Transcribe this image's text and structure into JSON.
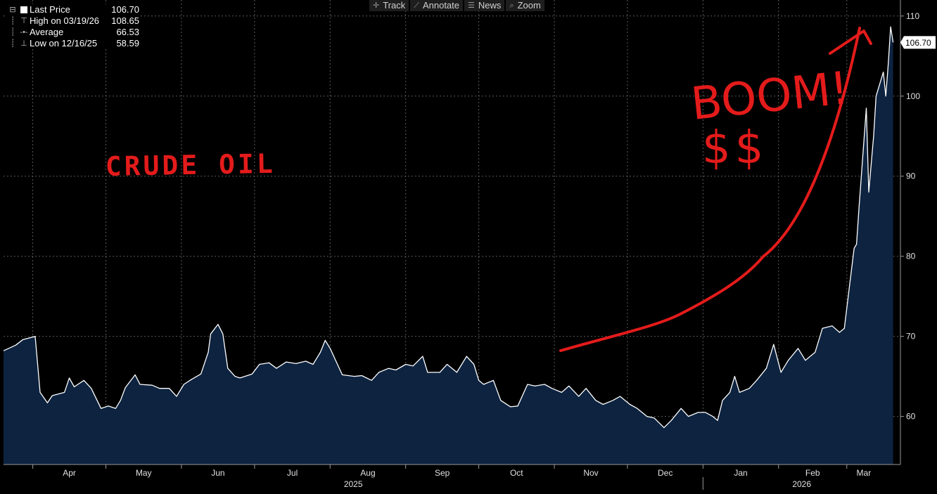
{
  "toolbar": {
    "buttons": [
      {
        "label": "Track",
        "icon": "crosshair-icon",
        "glyph": "✛"
      },
      {
        "label": "Annotate",
        "icon": "pencil-icon",
        "glyph": "⟋"
      },
      {
        "label": "News",
        "icon": "news-icon",
        "glyph": "☰"
      },
      {
        "label": "Zoom",
        "icon": "magnifier-icon",
        "glyph": "⌕"
      }
    ]
  },
  "legend": {
    "last_price": {
      "label": "Last Price",
      "value": "106.70"
    },
    "high": {
      "label": "High on 03/19/26",
      "value": "108.65"
    },
    "average": {
      "label": "Average",
      "value": "66.53"
    },
    "low": {
      "label": "Low on 12/16/25",
      "value": "58.59"
    }
  },
  "annotations": {
    "left_text": "CRUDE OIL",
    "boom_text": "BOOM!",
    "money_text": "$$",
    "color": "#e41b1b"
  },
  "colors": {
    "background": "#000000",
    "area_fill": "#0d2340",
    "line": "#ffffff",
    "grid": "#5a5a5a"
  },
  "chart_data": {
    "type": "area",
    "y_axis_side": "right",
    "ylim": [
      54,
      112
    ],
    "y_ticks": [
      60,
      70,
      80,
      90,
      100,
      110
    ],
    "grid": true,
    "last_price_tag": "106.70",
    "x_month_labels": [
      "Apr",
      "May",
      "Jun",
      "Jul",
      "Aug",
      "Sep",
      "Oct",
      "Nov",
      "Dec",
      "Jan",
      "Feb",
      "Mar"
    ],
    "x_year_labels": [
      "2025",
      "2026"
    ],
    "x_start": "2025-03-20",
    "x_end": "2026-03-23",
    "series": [
      {
        "values": [
          [
            "2025-03-20",
            68.2
          ],
          [
            "2025-03-25",
            68.9
          ],
          [
            "2025-03-28",
            69.6
          ],
          [
            "2025-04-02",
            70.0
          ],
          [
            "2025-04-04",
            63.0
          ],
          [
            "2025-04-07",
            61.7
          ],
          [
            "2025-04-09",
            62.6
          ],
          [
            "2025-04-14",
            63.0
          ],
          [
            "2025-04-16",
            64.8
          ],
          [
            "2025-04-18",
            63.7
          ],
          [
            "2025-04-22",
            64.5
          ],
          [
            "2025-04-25",
            63.5
          ],
          [
            "2025-04-29",
            61.0
          ],
          [
            "2025-05-02",
            61.3
          ],
          [
            "2025-05-05",
            61.0
          ],
          [
            "2025-05-07",
            62.0
          ],
          [
            "2025-05-09",
            63.6
          ],
          [
            "2025-05-13",
            65.2
          ],
          [
            "2025-05-15",
            64.0
          ],
          [
            "2025-05-20",
            63.9
          ],
          [
            "2025-05-23",
            63.5
          ],
          [
            "2025-05-27",
            63.5
          ],
          [
            "2025-05-30",
            62.5
          ],
          [
            "2025-06-02",
            64.0
          ],
          [
            "2025-06-05",
            64.6
          ],
          [
            "2025-06-09",
            65.3
          ],
          [
            "2025-06-12",
            68.0
          ],
          [
            "2025-06-13",
            70.3
          ],
          [
            "2025-06-16",
            71.5
          ],
          [
            "2025-06-18",
            70.3
          ],
          [
            "2025-06-20",
            66.0
          ],
          [
            "2025-06-23",
            65.0
          ],
          [
            "2025-06-25",
            64.8
          ],
          [
            "2025-06-30",
            65.3
          ],
          [
            "2025-07-03",
            66.5
          ],
          [
            "2025-07-07",
            66.7
          ],
          [
            "2025-07-10",
            66.0
          ],
          [
            "2025-07-14",
            66.8
          ],
          [
            "2025-07-18",
            66.6
          ],
          [
            "2025-07-22",
            66.9
          ],
          [
            "2025-07-25",
            66.5
          ],
          [
            "2025-07-28",
            68.0
          ],
          [
            "2025-07-30",
            69.5
          ],
          [
            "2025-08-01",
            68.5
          ],
          [
            "2025-08-04",
            66.5
          ],
          [
            "2025-08-06",
            65.2
          ],
          [
            "2025-08-11",
            65.0
          ],
          [
            "2025-08-14",
            65.1
          ],
          [
            "2025-08-18",
            64.5
          ],
          [
            "2025-08-21",
            65.5
          ],
          [
            "2025-08-25",
            66.0
          ],
          [
            "2025-08-28",
            65.8
          ],
          [
            "2025-09-01",
            66.5
          ],
          [
            "2025-09-04",
            66.3
          ],
          [
            "2025-09-08",
            67.5
          ],
          [
            "2025-09-10",
            65.5
          ],
          [
            "2025-09-15",
            65.5
          ],
          [
            "2025-09-18",
            66.5
          ],
          [
            "2025-09-22",
            65.5
          ],
          [
            "2025-09-26",
            67.5
          ],
          [
            "2025-09-29",
            66.5
          ],
          [
            "2025-10-01",
            64.5
          ],
          [
            "2025-10-03",
            64.0
          ],
          [
            "2025-10-07",
            64.5
          ],
          [
            "2025-10-10",
            62.0
          ],
          [
            "2025-10-14",
            61.2
          ],
          [
            "2025-10-17",
            61.3
          ],
          [
            "2025-10-21",
            64.0
          ],
          [
            "2025-10-24",
            63.8
          ],
          [
            "2025-10-28",
            64.0
          ],
          [
            "2025-10-31",
            63.5
          ],
          [
            "2025-11-04",
            63.0
          ],
          [
            "2025-11-07",
            63.8
          ],
          [
            "2025-11-11",
            62.5
          ],
          [
            "2025-11-14",
            63.5
          ],
          [
            "2025-11-18",
            62.0
          ],
          [
            "2025-11-21",
            61.5
          ],
          [
            "2025-11-25",
            62.0
          ],
          [
            "2025-11-28",
            62.5
          ],
          [
            "2025-12-02",
            61.5
          ],
          [
            "2025-12-05",
            61.0
          ],
          [
            "2025-12-09",
            60.0
          ],
          [
            "2025-12-12",
            59.8
          ],
          [
            "2025-12-16",
            58.6
          ],
          [
            "2025-12-19",
            59.5
          ],
          [
            "2025-12-23",
            61.0
          ],
          [
            "2025-12-26",
            60.0
          ],
          [
            "2025-12-30",
            60.5
          ],
          [
            "2026-01-02",
            60.5
          ],
          [
            "2026-01-05",
            60.0
          ],
          [
            "2026-01-07",
            59.5
          ],
          [
            "2026-01-09",
            62.0
          ],
          [
            "2026-01-12",
            63.0
          ],
          [
            "2026-01-14",
            65.0
          ],
          [
            "2026-01-16",
            63.0
          ],
          [
            "2026-01-20",
            63.5
          ],
          [
            "2026-01-23",
            64.5
          ],
          [
            "2026-01-27",
            66.0
          ],
          [
            "2026-01-30",
            69.0
          ],
          [
            "2026-02-02",
            65.5
          ],
          [
            "2026-02-05",
            67.0
          ],
          [
            "2026-02-09",
            68.5
          ],
          [
            "2026-02-12",
            67.0
          ],
          [
            "2026-02-16",
            68.0
          ],
          [
            "2026-02-19",
            71.0
          ],
          [
            "2026-02-23",
            71.3
          ],
          [
            "2026-02-26",
            70.5
          ],
          [
            "2026-02-28",
            71.0
          ],
          [
            "2026-03-02",
            76.0
          ],
          [
            "2026-03-04",
            81.0
          ],
          [
            "2026-03-05",
            81.5
          ],
          [
            "2026-03-06",
            86.0
          ],
          [
            "2026-03-09",
            98.5
          ],
          [
            "2026-03-10",
            88.0
          ],
          [
            "2026-03-12",
            95.0
          ],
          [
            "2026-03-13",
            100.0
          ],
          [
            "2026-03-16",
            103.0
          ],
          [
            "2026-03-17",
            100.0
          ],
          [
            "2026-03-18",
            104.0
          ],
          [
            "2026-03-19",
            108.65
          ],
          [
            "2026-03-20",
            106.7
          ]
        ]
      }
    ]
  }
}
